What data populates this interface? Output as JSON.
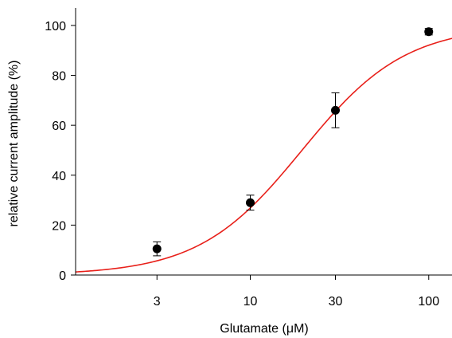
{
  "chart_data": {
    "type": "scatter",
    "xlabel": "Glutamate (μM)",
    "ylabel": "relative current amplitude (%)",
    "x_scale": "log",
    "xlim": [
      1.05,
      135
    ],
    "ylim": [
      0,
      107
    ],
    "x_ticks": [
      3,
      10,
      30,
      100
    ],
    "y_ticks": [
      0,
      20,
      40,
      60,
      80,
      100
    ],
    "grid": false,
    "legend": "none",
    "series": [
      {
        "type": "points_with_error_bars",
        "color": "#000000",
        "points": [
          {
            "x": 3,
            "y": 10.5,
            "err": 2.8
          },
          {
            "x": 10,
            "y": 29,
            "err": 3.0
          },
          {
            "x": 30,
            "y": 66,
            "err": 7.0
          },
          {
            "x": 100,
            "y": 97.5,
            "err": 1.3
          }
        ]
      },
      {
        "type": "fit_curve",
        "color": "#e8201a",
        "model": "hill",
        "ec50": 19.5,
        "hill_coefficient": 1.5,
        "max": 100
      }
    ]
  }
}
